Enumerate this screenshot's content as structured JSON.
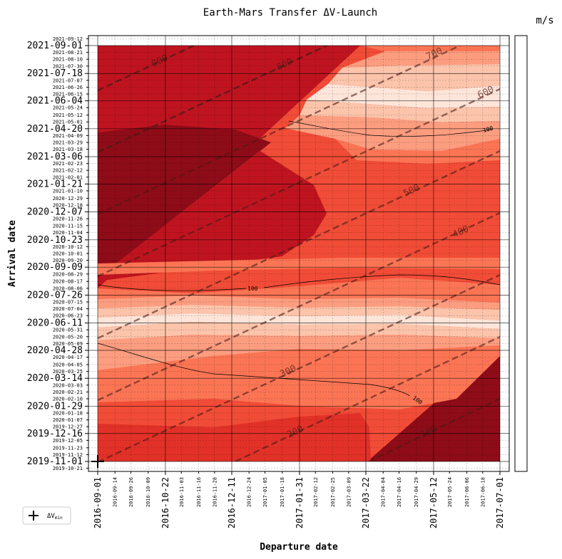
{
  "chart_data": {
    "type": "heatmap",
    "title": "Earth-Mars Transfer ΔV-Launch",
    "colorbar_label": "m/s",
    "xlabel": "Departure date",
    "ylabel": "Arrival date",
    "x_major_ticks": [
      "2016-09-01",
      "2016-10-22",
      "2016-12-11",
      "2017-01-31",
      "2017-03-22",
      "2017-05-12",
      "2017-07-01"
    ],
    "x_minor_ticks": [
      "2016-09-14",
      "2016-09-26",
      "2016-10-09",
      "2016-11-03",
      "2016-11-16",
      "2016-11-28",
      "2016-12-24",
      "2017-01-05",
      "2017-01-18",
      "2017-02-12",
      "2017-02-25",
      "2017-03-09",
      "2017-04-04",
      "2017-04-16",
      "2017-04-29",
      "2017-05-24",
      "2017-06-06",
      "2017-06-18"
    ],
    "y_major_ticks": [
      "2019-11-01",
      "2019-12-16",
      "2020-01-29",
      "2020-03-14",
      "2020-04-28",
      "2020-06-11",
      "2020-07-26",
      "2020-09-09",
      "2020-10-23",
      "2020-12-07",
      "2021-01-21",
      "2021-03-06",
      "2021-04-20",
      "2021-06-04",
      "2021-07-18",
      "2021-09-01"
    ],
    "y_minor_ticks": [
      "2019-10-21",
      "2019-11-12",
      "2019-11-23",
      "2019-12-05",
      "2019-12-27",
      "2020-01-07",
      "2020-01-18",
      "2020-02-10",
      "2020-02-21",
      "2020-03-03",
      "2020-03-25",
      "2020-04-05",
      "2020-04-17",
      "2020-05-09",
      "2020-05-20",
      "2020-05-31",
      "2020-06-23",
      "2020-07-04",
      "2020-07-15",
      "2020-08-06",
      "2020-08-17",
      "2020-08-29",
      "2020-09-20",
      "2020-10-01",
      "2020-10-12",
      "2020-11-04",
      "2020-11-15",
      "2020-11-26",
      "2020-12-18",
      "2020-12-29",
      "2021-01-10",
      "2021-02-01",
      "2021-02-12",
      "2021-02-23",
      "2021-03-18",
      "2021-03-29",
      "2021-04-09",
      "2021-05-01",
      "2021-05-12",
      "2021-05-24",
      "2021-06-15",
      "2021-06-26",
      "2021-07-07",
      "2021-07-30",
      "2021-08-10",
      "2021-08-21",
      "2021-09-12"
    ],
    "tof_contours": [
      {
        "label": "100",
        "value": 100
      },
      {
        "label": "200",
        "value": 200
      },
      {
        "label": "300",
        "value": 300
      },
      {
        "label": "400",
        "value": 400
      },
      {
        "label": "500",
        "value": 500
      },
      {
        "label": "600",
        "value": 600
      },
      {
        "label": "700",
        "value": 700
      },
      {
        "label": "800",
        "value": 800
      },
      {
        "label": "900",
        "value": 900
      }
    ],
    "dv_contour_labels": [
      "100",
      "100",
      "100"
    ],
    "legend": {
      "marker": "+",
      "label": "ΔV",
      "label_sub": "min",
      "position": "lower-left outside"
    },
    "min_marker": {
      "x": "2016-09-01",
      "y": "2019-11-01"
    },
    "grid": true,
    "colors": {
      "c0": "#fee5d9",
      "c1": "#fcc4ab",
      "c2": "#fc9d80",
      "c3": "#fb7555",
      "c4": "#f14c37",
      "c5": "#e23128",
      "c6": "#bf1420",
      "c7": "#8e0c18",
      "tof_line": "#4a1a16",
      "contour_line": "#000000"
    }
  }
}
